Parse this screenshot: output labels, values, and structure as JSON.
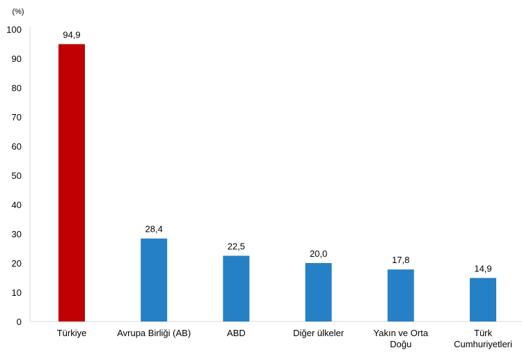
{
  "chart_data": {
    "type": "bar",
    "unit_label": "(%)",
    "categories": [
      "Türkiye",
      "Avrupa Birliği (AB)",
      "ABD",
      "Diğer ülkeler",
      "Yakın ve Orta Doğu",
      "Türk Cumhuriyetleri"
    ],
    "category_lines": [
      [
        "Türkiye"
      ],
      [
        "Avrupa Birliği (AB)"
      ],
      [
        "ABD"
      ],
      [
        "Diğer ülkeler"
      ],
      [
        "Yakın ve",
        "Orta",
        "Doğu"
      ],
      [
        "Türk",
        "Cumhuriyetleri"
      ]
    ],
    "values": [
      94.9,
      28.4,
      22.5,
      20.0,
      17.8,
      14.9
    ],
    "data_labels": [
      "94,9",
      "28,4",
      "22,5",
      "20,0",
      "17,8",
      "14,9"
    ],
    "colors": [
      "#C00000",
      "#2680C6",
      "#2680C6",
      "#2680C6",
      "#2680C6",
      "#2680C6"
    ],
    "ylim": [
      0,
      100
    ],
    "yticks": [
      0,
      10,
      20,
      30,
      40,
      50,
      60,
      70,
      80,
      90,
      100
    ],
    "grid": false,
    "legend": "none"
  }
}
